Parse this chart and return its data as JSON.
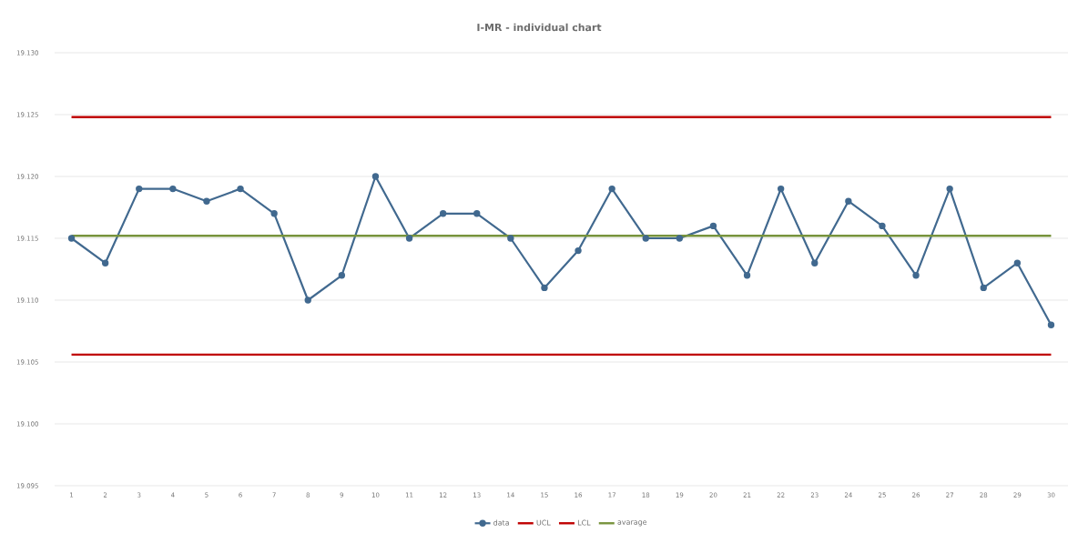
{
  "chart_data": {
    "type": "line",
    "title": "I-MR - individual chart",
    "categories": [
      "1",
      "2",
      "3",
      "4",
      "5",
      "6",
      "7",
      "8",
      "9",
      "10",
      "11",
      "12",
      "13",
      "14",
      "15",
      "16",
      "17",
      "18",
      "19",
      "20",
      "21",
      "22",
      "23",
      "24",
      "25",
      "26",
      "27",
      "28",
      "29",
      "30"
    ],
    "series": [
      {
        "name": "data",
        "color": "#41698f",
        "marker": "circle",
        "values": [
          19.115,
          19.113,
          19.119,
          19.119,
          19.118,
          19.119,
          19.117,
          19.11,
          19.112,
          19.12,
          19.115,
          19.117,
          19.117,
          19.115,
          19.111,
          19.114,
          19.119,
          19.115,
          19.115,
          19.116,
          19.112,
          19.119,
          19.113,
          19.118,
          19.116,
          19.112,
          19.119,
          19.111,
          19.113,
          19.108
        ]
      },
      {
        "name": "UCL",
        "color": "#c00000",
        "marker": "none",
        "values": [
          19.1248,
          19.1248,
          19.1248,
          19.1248,
          19.1248,
          19.1248,
          19.1248,
          19.1248,
          19.1248,
          19.1248,
          19.1248,
          19.1248,
          19.1248,
          19.1248,
          19.1248,
          19.1248,
          19.1248,
          19.1248,
          19.1248,
          19.1248,
          19.1248,
          19.1248,
          19.1248,
          19.1248,
          19.1248,
          19.1248,
          19.1248,
          19.1248,
          19.1248,
          19.1248
        ]
      },
      {
        "name": "LCL",
        "color": "#c00000",
        "marker": "none",
        "values": [
          19.1056,
          19.1056,
          19.1056,
          19.1056,
          19.1056,
          19.1056,
          19.1056,
          19.1056,
          19.1056,
          19.1056,
          19.1056,
          19.1056,
          19.1056,
          19.1056,
          19.1056,
          19.1056,
          19.1056,
          19.1056,
          19.1056,
          19.1056,
          19.1056,
          19.1056,
          19.1056,
          19.1056,
          19.1056,
          19.1056,
          19.1056,
          19.1056,
          19.1056,
          19.1056
        ]
      },
      {
        "name": "avarage",
        "color": "#77933c",
        "marker": "none",
        "values": [
          19.1152,
          19.1152,
          19.1152,
          19.1152,
          19.1152,
          19.1152,
          19.1152,
          19.1152,
          19.1152,
          19.1152,
          19.1152,
          19.1152,
          19.1152,
          19.1152,
          19.1152,
          19.1152,
          19.1152,
          19.1152,
          19.1152,
          19.1152,
          19.1152,
          19.1152,
          19.1152,
          19.1152,
          19.1152,
          19.1152,
          19.1152,
          19.1152,
          19.1152,
          19.1152
        ]
      }
    ],
    "ylim": [
      19.095,
      19.13
    ],
    "yticks": [
      {
        "value": 19.095,
        "label": "19.095"
      },
      {
        "value": 19.1,
        "label": "19.100"
      },
      19.105,
      {
        "value": 19.11,
        "label": "19.110"
      },
      19.115,
      {
        "value": 19.12,
        "label": "19.120"
      },
      19.125,
      {
        "value": 19.13,
        "label": "19.130"
      }
    ],
    "grid": "y",
    "legend": "bottom"
  }
}
